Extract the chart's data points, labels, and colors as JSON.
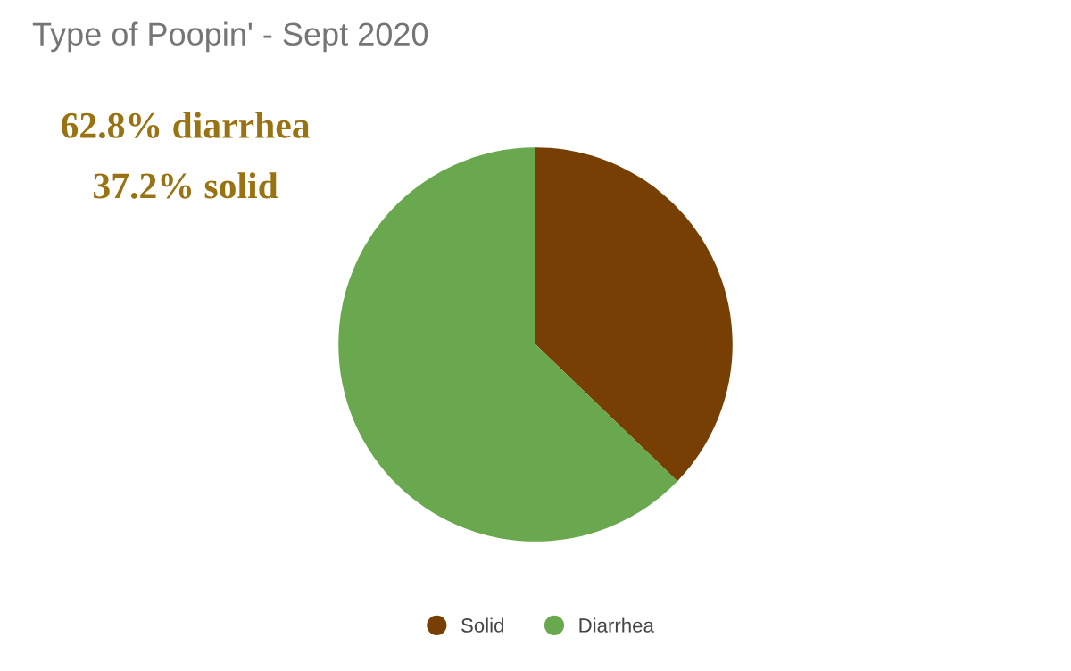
{
  "chart_data": {
    "type": "pie",
    "title": "Type of Poopin' - Sept 2020",
    "categories": [
      "Solid",
      "Diarrhea"
    ],
    "values": [
      37.2,
      62.8
    ],
    "colors": [
      "#783f04",
      "#6aa84f"
    ],
    "annotations": [
      "62.8% diarrhea",
      "37.2% solid"
    ],
    "legend": "bottom"
  }
}
